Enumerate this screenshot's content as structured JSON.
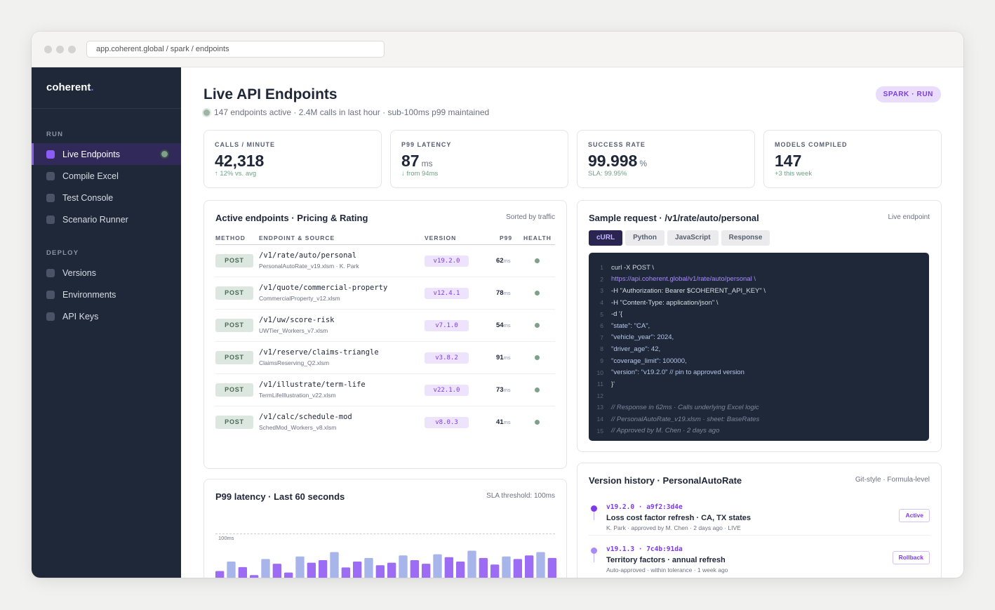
{
  "browser": {
    "url": "app.coherent.global / spark / endpoints"
  },
  "sidebar": {
    "brand": "coherent",
    "brand_dot": ".",
    "sections": [
      {
        "label": "RUN",
        "items": [
          {
            "label": "Live Endpoints",
            "active": true
          },
          {
            "label": "Compile Excel"
          },
          {
            "label": "Test Console"
          },
          {
            "label": "Scenario Runner"
          }
        ]
      },
      {
        "label": "DEPLOY",
        "items": [
          {
            "label": "Versions"
          },
          {
            "label": "Environments"
          },
          {
            "label": "API Keys"
          }
        ]
      }
    ]
  },
  "header": {
    "title": "Live API Endpoints",
    "subtitle": "147 endpoints active · 2.4M calls in last hour · sub-100ms p99 maintained",
    "badge": "SPARK · RUN"
  },
  "kpis": [
    {
      "label": "CALLS / MINUTE",
      "value": "42,318",
      "unit": "",
      "sub": "↑ 12% vs. avg"
    },
    {
      "label": "P99 LATENCY",
      "value": "87",
      "unit": "ms",
      "sub": "↓ from 94ms"
    },
    {
      "label": "SUCCESS RATE",
      "value": "99.998",
      "unit": "%",
      "sub": "SLA: 99.95%"
    },
    {
      "label": "MODELS COMPILED",
      "value": "147",
      "unit": "",
      "sub": "+3 this week"
    }
  ],
  "endpoints": {
    "title": "Active endpoints · Pricing & Rating",
    "meta": "Sorted by traffic",
    "columns": [
      "METHOD",
      "ENDPOINT & SOURCE",
      "VERSION",
      "P99",
      "HEALTH"
    ],
    "rows": [
      {
        "method": "POST",
        "path": "/v1/rate/auto/personal",
        "source": "PersonalAutoRate_v19.xlsm · K. Park",
        "version": "v19.2.0",
        "p99": "62",
        "unit": "ms"
      },
      {
        "method": "POST",
        "path": "/v1/quote/commercial-property",
        "source": "CommercialProperty_v12.xlsm",
        "version": "v12.4.1",
        "p99": "78",
        "unit": "ms"
      },
      {
        "method": "POST",
        "path": "/v1/uw/score-risk",
        "source": "UWTier_Workers_v7.xlsm",
        "version": "v7.1.0",
        "p99": "54",
        "unit": "ms"
      },
      {
        "method": "POST",
        "path": "/v1/reserve/claims-triangle",
        "source": "ClaimsReserving_Q2.xlsm",
        "version": "v3.8.2",
        "p99": "91",
        "unit": "ms"
      },
      {
        "method": "POST",
        "path": "/v1/illustrate/term-life",
        "source": "TermLifeIllustration_v22.xlsm",
        "version": "v22.1.0",
        "p99": "73",
        "unit": "ms"
      },
      {
        "method": "POST",
        "path": "/v1/calc/schedule-mod",
        "source": "SchedMod_Workers_v8.xlsm",
        "version": "v8.0.3",
        "p99": "41",
        "unit": "ms"
      }
    ]
  },
  "sample": {
    "title": "Sample request · /v1/rate/auto/personal",
    "meta": "Live endpoint",
    "tabs": [
      "cURL",
      "Python",
      "JavaScript",
      "Response"
    ],
    "active_tab": "cURL",
    "lines": [
      {
        "n": "1",
        "text": "curl -X POST \\",
        "kind": "cmd"
      },
      {
        "n": "2",
        "text": "https://api.coherent.global/v1/rate/auto/personal \\",
        "kind": "url"
      },
      {
        "n": "3",
        "text": "-H \"Authorization: Bearer $COHERENT_API_KEY\" \\",
        "kind": "cmd"
      },
      {
        "n": "4",
        "text": "-H \"Content-Type: application/json\" \\",
        "kind": "cmd"
      },
      {
        "n": "5",
        "text": "-d '{",
        "kind": "cmd"
      },
      {
        "n": "6",
        "text": "\"state\": \"CA\",",
        "kind": "str"
      },
      {
        "n": "7",
        "text": "\"vehicle_year\": 2024,",
        "kind": "str"
      },
      {
        "n": "8",
        "text": "\"driver_age\": 42,",
        "kind": "str"
      },
      {
        "n": "9",
        "text": "\"coverage_limit\": 100000,",
        "kind": "str"
      },
      {
        "n": "10",
        "text": "\"version\": \"v19.2.0\" // pin to approved version",
        "kind": "str"
      },
      {
        "n": "11",
        "text": "}'",
        "kind": "cmd"
      },
      {
        "n": "12",
        "text": "",
        "kind": "cmd"
      },
      {
        "n": "13",
        "text": "// Response in 62ms · Calls underlying Excel logic",
        "kind": "cmt"
      },
      {
        "n": "14",
        "text": "// PersonalAutoRate_v19.xlsm · sheet: BaseRates",
        "kind": "cmt"
      },
      {
        "n": "15",
        "text": "// Approved by M. Chen · 2 days ago",
        "kind": "cmt"
      }
    ]
  },
  "latency": {
    "title": "P99 latency · Last 60 seconds",
    "meta": "SLA threshold: 100ms",
    "threshold_label": "100ms",
    "colors": {
      "primary": "#9d6cf5",
      "secondary": "#a7b5ea"
    }
  },
  "chart_data": {
    "type": "bar",
    "title": "P99 latency · Last 60 seconds",
    "threshold": 100,
    "ylim": [
      0,
      100
    ],
    "values": [
      22,
      48,
      33,
      11,
      55,
      42,
      18,
      62,
      45,
      52,
      74,
      32,
      48,
      58,
      38,
      45,
      65,
      52,
      42,
      68,
      60,
      48,
      78,
      58,
      40,
      62,
      55,
      65,
      74,
      58
    ]
  },
  "history": {
    "title": "Version history · PersonalAutoRate",
    "meta": "Git-style · Formula-level",
    "items": [
      {
        "hash": "v19.2.0 · a9f2:3d4e",
        "title": "Loss cost factor refresh · CA, TX states",
        "meta": "K. Park · approved by M. Chen · 2 days ago · LIVE",
        "action": "Active"
      },
      {
        "hash": "v19.1.3 · 7c4b:91da",
        "title": "Territory factors · annual refresh",
        "meta": "Auto-approved · within tolerance · 1 week ago",
        "action": "Rollback"
      }
    ]
  }
}
